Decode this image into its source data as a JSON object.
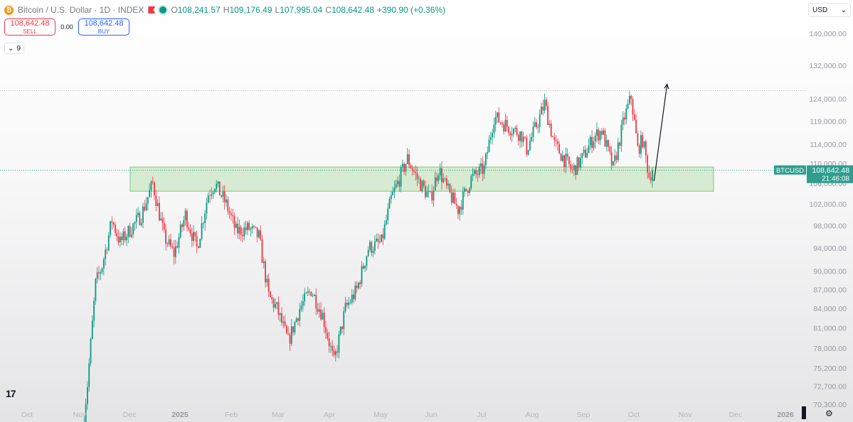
{
  "header": {
    "symbol_title": "Bitcoin / U.S. Dollar · 1D · INDEX",
    "coin_glyph": "₿",
    "ohlc": [
      {
        "label": "O",
        "value": "108,241.57"
      },
      {
        "label": "H",
        "value": "109,176.49"
      },
      {
        "label": "L",
        "value": "107,995.04"
      },
      {
        "label": "C",
        "value": "108,642.48"
      }
    ],
    "change": "+390.90 (+0.36%)"
  },
  "trade": {
    "sell_price": "108,642.48",
    "sell_label": "SELL",
    "spread": "0.00",
    "buy_price": "108,642.48",
    "buy_label": "BUY"
  },
  "indicator": {
    "chevron": "⌄",
    "value": "9"
  },
  "currency": {
    "label": "USD",
    "chevron": "⌄"
  },
  "logo_text": "17",
  "settings_glyph": "⚙",
  "colors": {
    "up": "#089981",
    "down": "#f23645",
    "zone_fill": "#c8e6c0",
    "zone_border": "#7cc47e",
    "badge": "#2e9e8e"
  },
  "price_label": {
    "ticker": "BTCUSD",
    "price": "108,642.48",
    "countdown": "21:46:08"
  },
  "chart_data": {
    "type": "candlestick",
    "symbol": "BTCUSD",
    "timeframe": "1D",
    "y_scale": "log",
    "x_ticks": [
      "Oct",
      "Nov",
      "Dec",
      "2025",
      "Feb",
      "Mar",
      "Apr",
      "May",
      "Jun",
      "Jul",
      "Aug",
      "Sep",
      "Oct",
      "Nov",
      "Dec",
      "2026"
    ],
    "y_ticks": [
      "140,000.00",
      "132,000.00",
      "124,000.00",
      "119,000.00",
      "114,000.00",
      "110,000.00",
      "106,000.00",
      "102,000.00",
      "98,000.00",
      "94,000.00",
      "90,000.00",
      "87,000.00",
      "84,000.00",
      "81,000.00",
      "78,000.00",
      "75,200.00",
      "72,700.00",
      "70,300.00"
    ],
    "y_tick_values": [
      140000,
      132000,
      124000,
      119000,
      114000,
      110000,
      106000,
      102000,
      98000,
      94000,
      90000,
      87000,
      84000,
      81000,
      78000,
      75200,
      72700,
      70300
    ],
    "last_price": 108642.48,
    "high_line": 126000,
    "support_zone": {
      "low": 104500,
      "high": 109300
    },
    "close_path": [
      {
        "t": "2024-11-05",
        "v": 69000
      },
      {
        "t": "2024-11-07",
        "v": 73000
      },
      {
        "t": "2024-11-12",
        "v": 88000
      },
      {
        "t": "2024-11-16",
        "v": 91000
      },
      {
        "t": "2024-11-22",
        "v": 99000
      },
      {
        "t": "2024-11-27",
        "v": 95000
      },
      {
        "t": "2024-12-05",
        "v": 98000
      },
      {
        "t": "2024-12-10",
        "v": 100000
      },
      {
        "t": "2024-12-17",
        "v": 106000
      },
      {
        "t": "2024-12-24",
        "v": 96000
      },
      {
        "t": "2024-12-30",
        "v": 93000
      },
      {
        "t": "2025-01-06",
        "v": 100000
      },
      {
        "t": "2025-01-13",
        "v": 94000
      },
      {
        "t": "2025-01-20",
        "v": 104000
      },
      {
        "t": "2025-01-24",
        "v": 106000
      },
      {
        "t": "2025-01-31",
        "v": 102000
      },
      {
        "t": "2025-02-06",
        "v": 97000
      },
      {
        "t": "2025-02-14",
        "v": 97500
      },
      {
        "t": "2025-02-20",
        "v": 96000
      },
      {
        "t": "2025-02-26",
        "v": 86000
      },
      {
        "t": "2025-03-03",
        "v": 84000
      },
      {
        "t": "2025-03-10",
        "v": 79000
      },
      {
        "t": "2025-03-17",
        "v": 84000
      },
      {
        "t": "2025-03-24",
        "v": 87000
      },
      {
        "t": "2025-03-31",
        "v": 83000
      },
      {
        "t": "2025-04-07",
        "v": 76000
      },
      {
        "t": "2025-04-14",
        "v": 84000
      },
      {
        "t": "2025-04-21",
        "v": 87000
      },
      {
        "t": "2025-04-28",
        "v": 94000
      },
      {
        "t": "2025-05-06",
        "v": 95000
      },
      {
        "t": "2025-05-12",
        "v": 103000
      },
      {
        "t": "2025-05-22",
        "v": 111000
      },
      {
        "t": "2025-05-28",
        "v": 107000
      },
      {
        "t": "2025-06-05",
        "v": 103000
      },
      {
        "t": "2025-06-10",
        "v": 109000
      },
      {
        "t": "2025-06-15",
        "v": 105000
      },
      {
        "t": "2025-06-22",
        "v": 101000
      },
      {
        "t": "2025-06-30",
        "v": 107000
      },
      {
        "t": "2025-07-08",
        "v": 109000
      },
      {
        "t": "2025-07-14",
        "v": 120000
      },
      {
        "t": "2025-07-22",
        "v": 118000
      },
      {
        "t": "2025-07-31",
        "v": 116000
      },
      {
        "t": "2025-08-03",
        "v": 113000
      },
      {
        "t": "2025-08-10",
        "v": 119000
      },
      {
        "t": "2025-08-14",
        "v": 123000
      },
      {
        "t": "2025-08-20",
        "v": 114000
      },
      {
        "t": "2025-08-31",
        "v": 108500
      },
      {
        "t": "2025-09-06",
        "v": 111000
      },
      {
        "t": "2025-09-13",
        "v": 115500
      },
      {
        "t": "2025-09-18",
        "v": 117000
      },
      {
        "t": "2025-09-25",
        "v": 109000
      },
      {
        "t": "2025-10-02",
        "v": 120000
      },
      {
        "t": "2025-10-06",
        "v": 124500
      },
      {
        "t": "2025-10-10",
        "v": 113000
      },
      {
        "t": "2025-10-13",
        "v": 115000
      },
      {
        "t": "2025-10-17",
        "v": 107500
      },
      {
        "t": "2025-10-19",
        "v": 108642.48
      }
    ],
    "projection_arrow": {
      "from": {
        "t": "2025-10-20",
        "v": 106500
      },
      "to": {
        "t": "2025-10-28",
        "v": 127500
      }
    }
  }
}
